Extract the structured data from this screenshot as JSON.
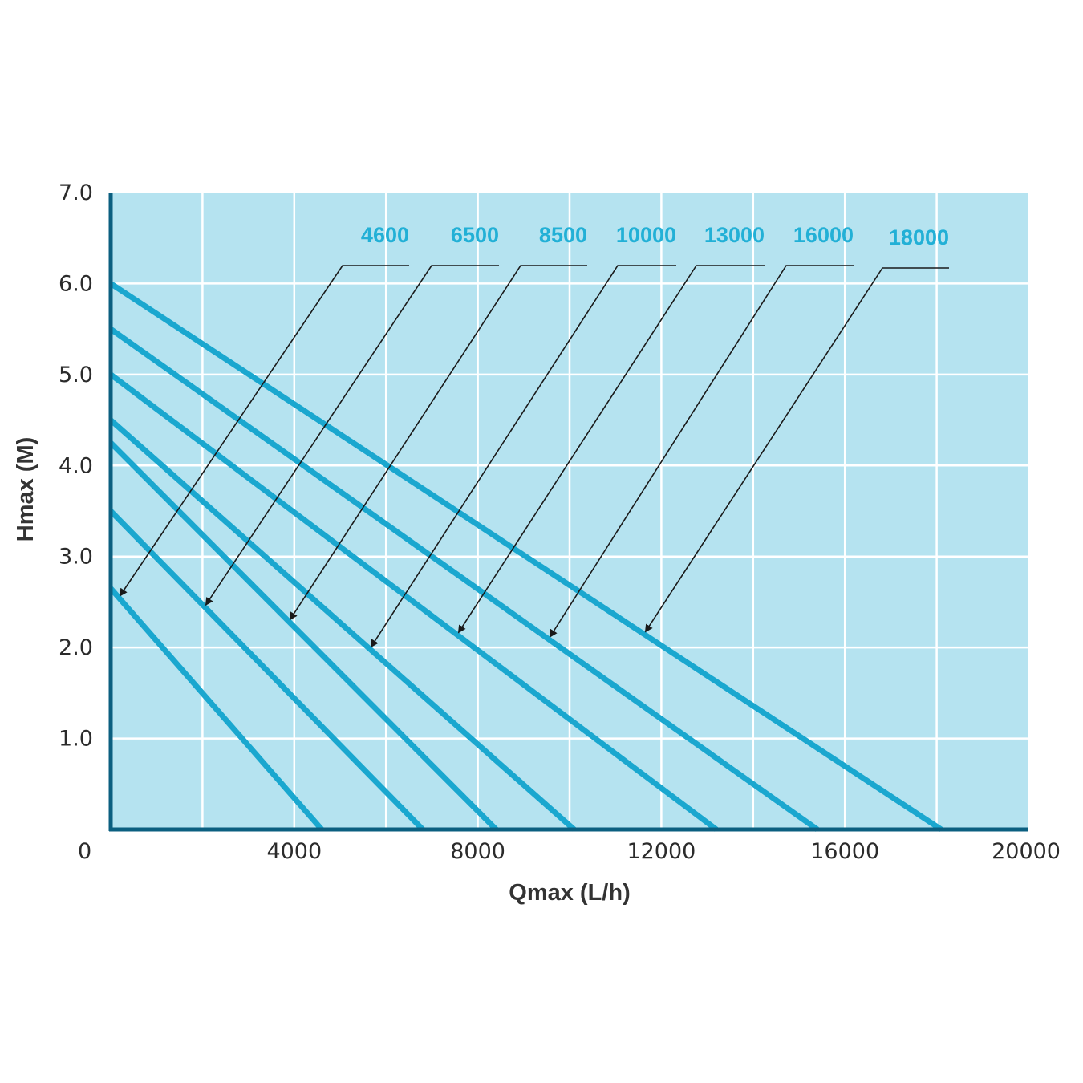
{
  "chart_data": {
    "type": "line",
    "xlabel": "Qmax (L/h)",
    "ylabel": "Hmax (M)",
    "xlim": [
      0,
      20000
    ],
    "ylim": [
      0,
      7.0
    ],
    "x_ticks": [
      "0",
      "4000",
      "8000",
      "12000",
      "16000",
      "20000"
    ],
    "y_ticks": [
      "1.0",
      "2.0",
      "3.0",
      "4.0",
      "5.0",
      "6.0",
      "7.0"
    ],
    "grid": true,
    "series": [
      {
        "name": "4600",
        "x": [
          0,
          4600
        ],
        "y": [
          2.65,
          0
        ]
      },
      {
        "name": "6500",
        "x": [
          0,
          6800
        ],
        "y": [
          3.5,
          0
        ]
      },
      {
        "name": "8500",
        "x": [
          0,
          8400
        ],
        "y": [
          4.25,
          0
        ]
      },
      {
        "name": "10000",
        "x": [
          0,
          10100
        ],
        "y": [
          4.5,
          0
        ]
      },
      {
        "name": "13000",
        "x": [
          0,
          13200
        ],
        "y": [
          5.0,
          0
        ]
      },
      {
        "name": "16000",
        "x": [
          0,
          15400
        ],
        "y": [
          5.5,
          0
        ]
      },
      {
        "name": "18000",
        "x": [
          0,
          18100
        ],
        "y": [
          6.0,
          0
        ]
      }
    ]
  },
  "colors": {
    "plot_background": "#b5e3f0",
    "grid": "#ffffff",
    "axis": "#0b5f80",
    "series_line": "#1aa7cf",
    "label_text": "#22b0d6",
    "leader": "#1a1a1a"
  }
}
